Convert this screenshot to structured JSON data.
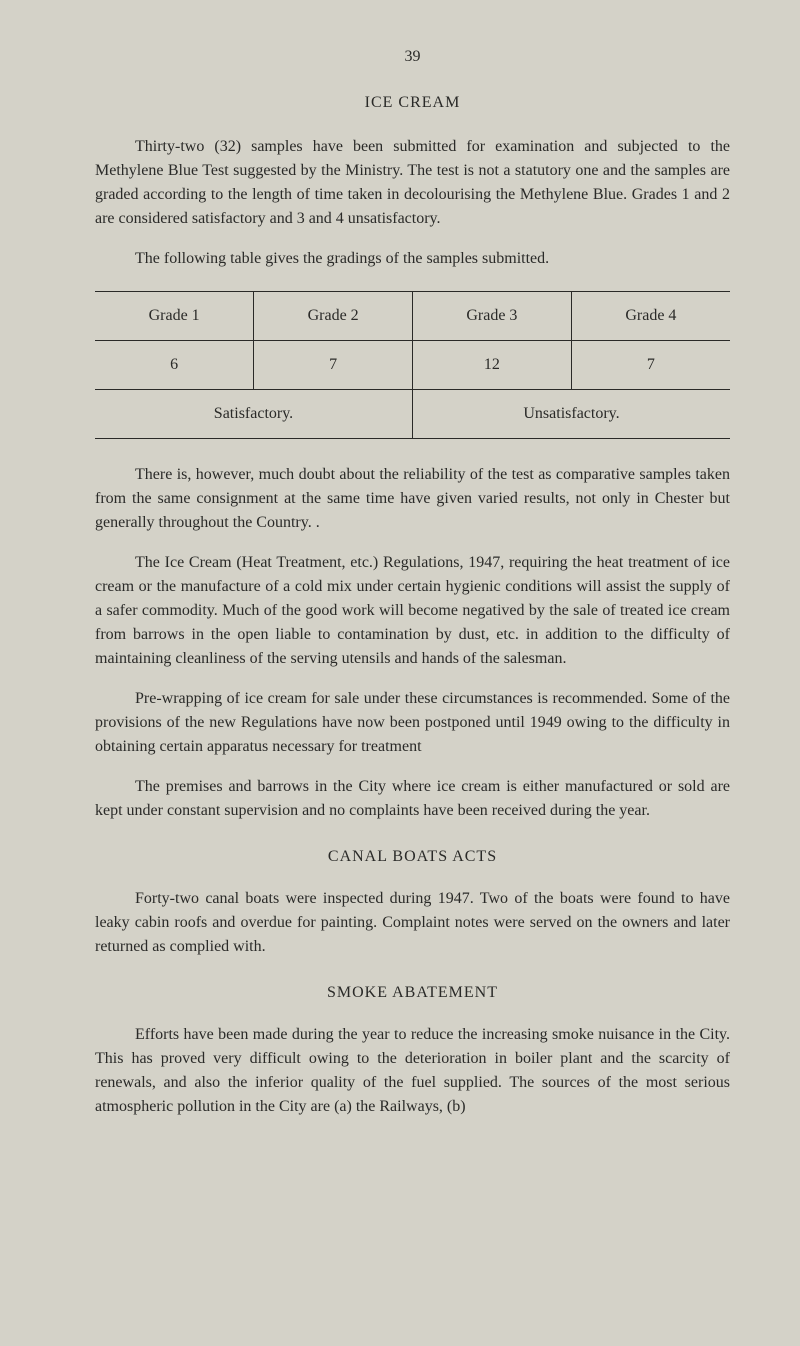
{
  "page_number": "39",
  "section_1": {
    "heading": "ICE CREAM",
    "para_1": "Thirty-two (32) samples have been submitted for examination and subjected to the Methylene Blue Test suggested by the Ministry. The test is not a statutory one and the samples are graded according to the length of time taken in decolourising the Methylene Blue. Grades 1 and 2 are considered satisfactory and 3 and 4 unsatisfactory.",
    "para_2": "The following table gives the gradings of the samples submitted.",
    "table": {
      "type": "table",
      "rows": 3,
      "background_color": "#d4d2c8",
      "border_color": "#2a2a28",
      "headers": [
        "Grade 1",
        "Grade 2",
        "Grade 3",
        "Grade 4"
      ],
      "values": [
        "6",
        "7",
        "12",
        "7"
      ],
      "summary": [
        "Satisfactory.",
        "Unsatisfactory."
      ]
    },
    "para_3": "There is, however, much doubt about the reliability of the test as comparative samples taken from the same consignment at the same time have given varied results, not only in Chester but generally throughout the Country. .",
    "para_4": "The Ice Cream (Heat Treatment, etc.) Regulations, 1947, requiring the heat treatment of ice cream or the manufacture of a cold mix under certain hygienic conditions will assist the supply of a safer commodity. Much of the good work will become negatived by the sale of treated ice cream from barrows in the open liable to contamination by dust, etc. in addition to the difficulty of maintaining cleanliness of the serving utensils and hands of the salesman.",
    "para_5": "Pre-wrapping of ice cream for sale under these circumstances is recommended. Some of the provisions of the new Regulations have now been postponed until 1949 owing to the difficulty in obtaining certain apparatus necessary for treatment",
    "para_6": "The premises and barrows in the City where ice cream is either manufactured or sold are kept under constant supervision and no complaints have been received during the year."
  },
  "section_2": {
    "heading": "CANAL BOATS ACTS",
    "para_1": "Forty-two canal boats were inspected during 1947. Two of the boats were found to have leaky cabin roofs and overdue for painting. Complaint notes were served on the owners and later returned as complied with."
  },
  "section_3": {
    "heading": "SMOKE ABATEMENT",
    "para_1": "Efforts have been made during the year to reduce the increasing smoke nuisance in the City. This has proved very difficult owing to the deterioration in boiler plant and the scarcity of renewals, and also the inferior quality of the fuel supplied. The sources of the most serious atmospheric pollution in the City are (a) the Railways, (b)"
  }
}
